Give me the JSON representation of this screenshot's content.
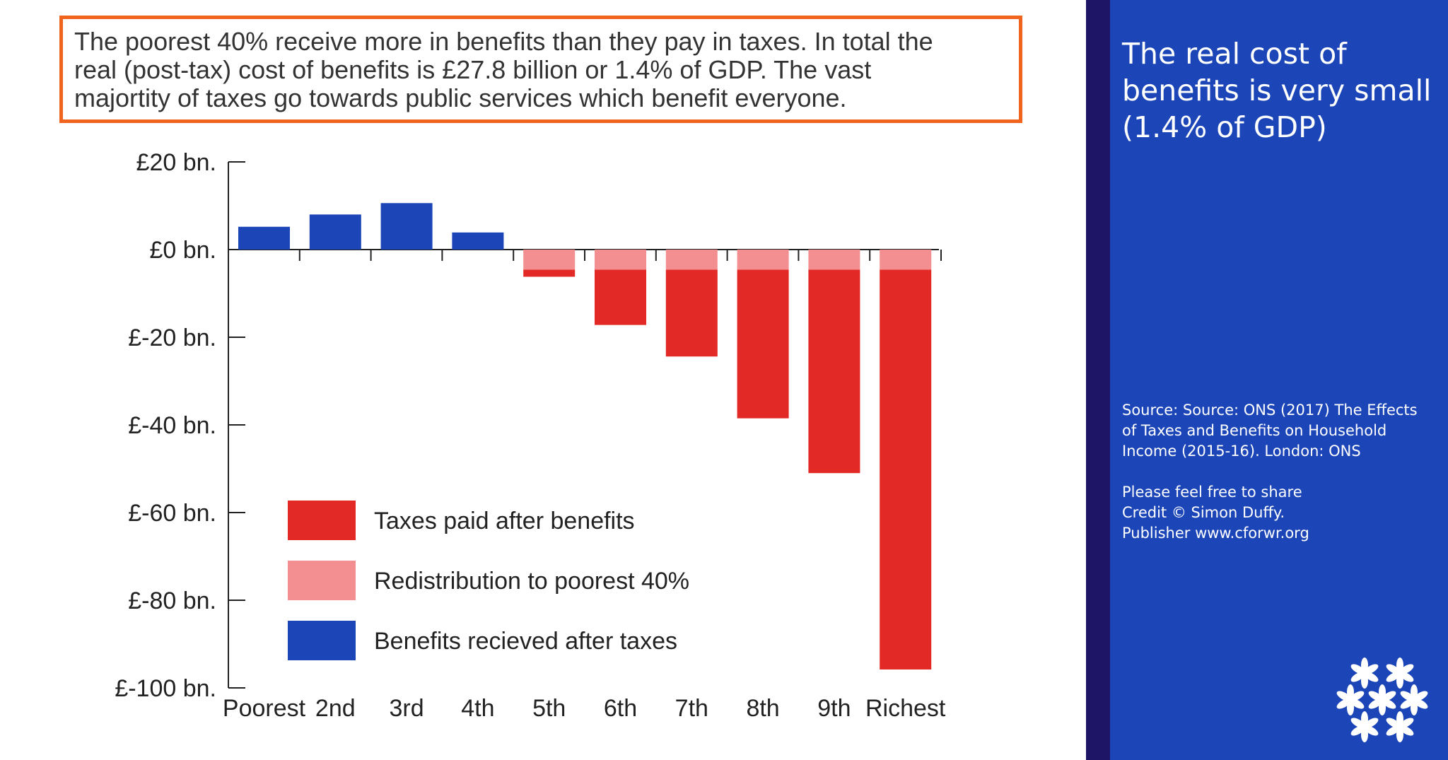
{
  "callout": {
    "lines": [
      "The poorest 40% receive more in benefits than they pay in taxes. In total the",
      "real (post-tax) cost of benefits is £27.8 billion or 1.4% of GDP. The vast",
      "majortity of taxes go towards public services which benefit everyone."
    ]
  },
  "chart_data": {
    "type": "bar",
    "stacked": true,
    "title": "",
    "xlabel": "",
    "ylabel": "",
    "categories": [
      "Poorest",
      "2nd",
      "3rd",
      "4th",
      "5th",
      "6th",
      "7th",
      "8th",
      "9th",
      "Richest"
    ],
    "series": [
      {
        "name": "Benefits recieved after taxes",
        "color": "#1c46b8",
        "values": [
          5.2,
          8.0,
          10.6,
          3.9,
          0,
          0,
          0,
          0,
          0,
          0
        ]
      },
      {
        "name": "Redistribution to poorest 40%",
        "color": "#f48f91",
        "values": [
          0,
          0,
          0,
          0,
          -4.6,
          -4.6,
          -4.6,
          -4.6,
          -4.6,
          -4.6
        ]
      },
      {
        "name": "Taxes paid after benefits",
        "color": "#e32925",
        "values": [
          0,
          0,
          0,
          0,
          -1.6,
          -12.6,
          -19.8,
          -33.9,
          -46.4,
          -91.2
        ]
      }
    ],
    "ylim": [
      -100,
      20
    ],
    "yticks": [
      20,
      0,
      -20,
      -40,
      -60,
      -80,
      -100
    ],
    "ytick_labels": [
      "£20 bn.",
      "£0 bn.",
      "£-20 bn.",
      "£-40 bn.",
      "£-60 bn.",
      "£-80 bn.",
      "£-100 bn."
    ],
    "legend": {
      "placement": "bottom-left",
      "order": [
        "Taxes paid after benefits",
        "Redistribution to poorest 40%",
        "Benefits recieved after taxes"
      ]
    },
    "grid": false
  },
  "sidebar": {
    "title_lines": [
      "The real cost of",
      "benefits is very small",
      "(1.4% of GDP)"
    ],
    "source_lines": [
      "Source: Source: ONS (2017) The Effects",
      "of Taxes and Benefits on Household",
      "Income (2015-16). London: ONS"
    ],
    "credit_lines": [
      "Please feel free to share",
      "Credit © Simon Duffy.",
      "Publisher www.cforwr.org"
    ],
    "colors": {
      "band": "#1e1566",
      "panel": "#1c46b8"
    }
  }
}
